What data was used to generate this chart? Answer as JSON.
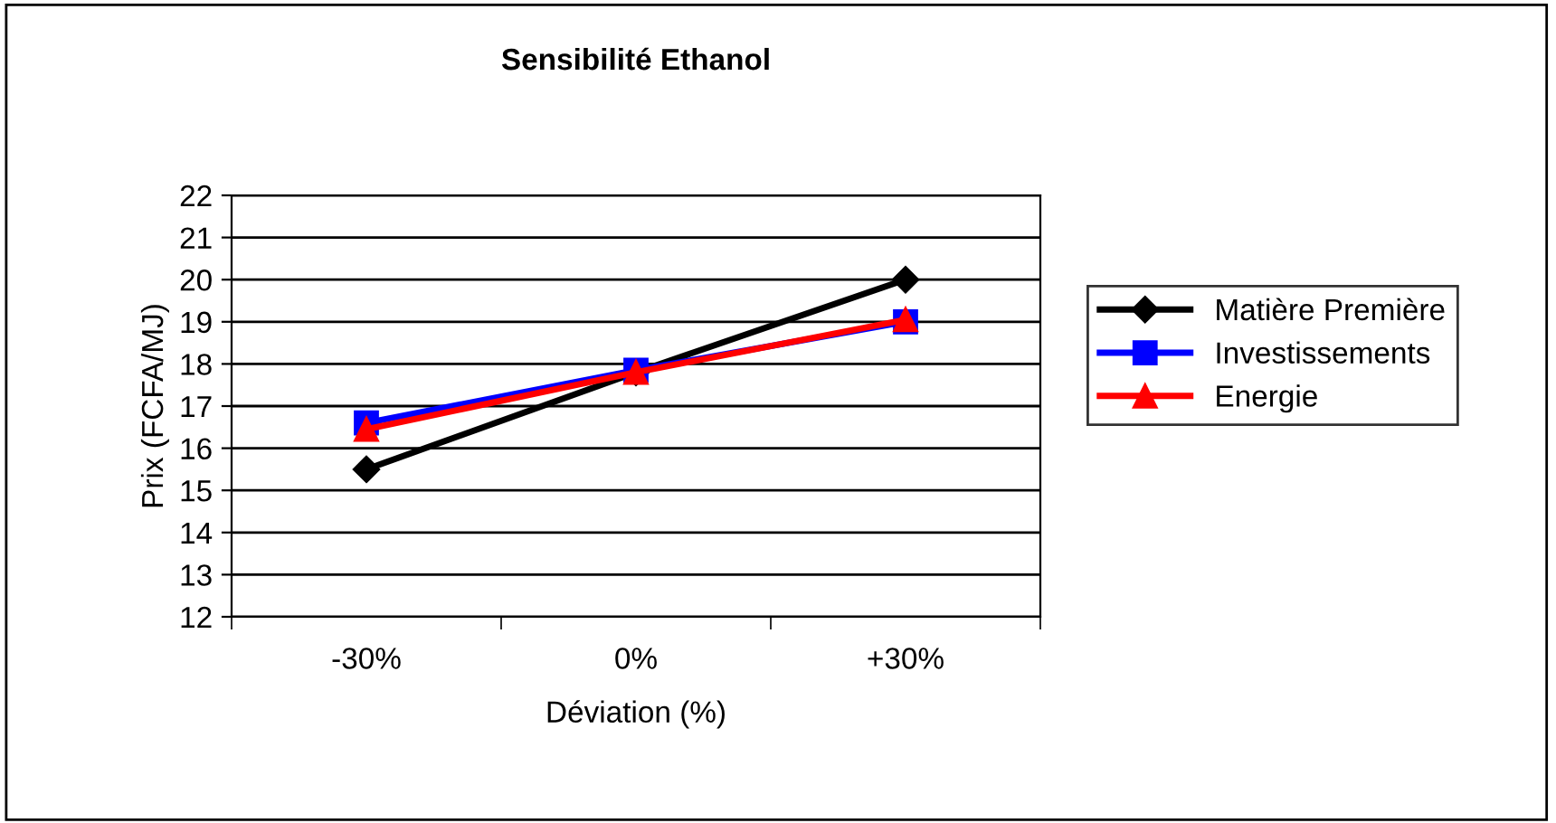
{
  "chart_data": {
    "type": "line",
    "title": "Sensibilité Ethanol",
    "xlabel": "Déviation (%)",
    "ylabel": "Prix (FCFA/MJ)",
    "categories": [
      "-30%",
      "0%",
      "+30%"
    ],
    "series": [
      {
        "name": "Matière Première",
        "color": "#000000",
        "marker": "diamond",
        "values": [
          15.5,
          17.8,
          20.0
        ]
      },
      {
        "name": "Investissements",
        "color": "#0000ff",
        "marker": "square",
        "values": [
          16.6,
          17.85,
          19.0
        ]
      },
      {
        "name": "Energie",
        "color": "#ff0000",
        "marker": "triangle",
        "values": [
          16.45,
          17.8,
          19.05
        ]
      }
    ],
    "ylim": [
      12,
      22
    ],
    "yticks": [
      12,
      13,
      14,
      15,
      16,
      17,
      18,
      19,
      20,
      21,
      22
    ],
    "grid": "y",
    "legend": "right",
    "line_style": "solid"
  }
}
